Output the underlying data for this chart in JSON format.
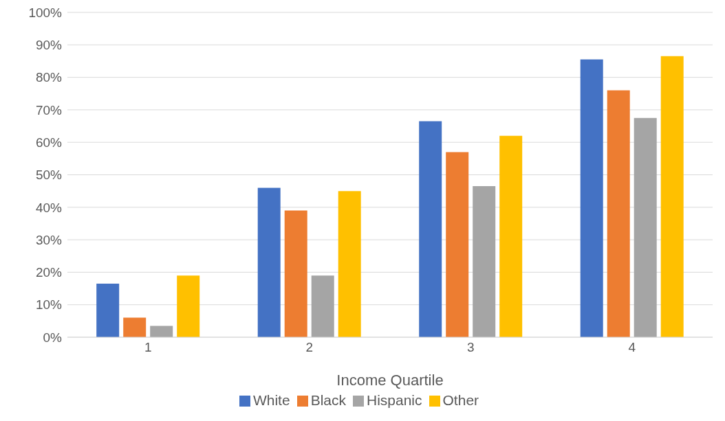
{
  "chart_data": {
    "type": "bar",
    "xlabel": "Income Quartile",
    "categories": [
      "1",
      "2",
      "3",
      "4"
    ],
    "series": [
      {
        "name": "White",
        "color": "#4472c4",
        "values": [
          16.5,
          46,
          66.5,
          85.5
        ]
      },
      {
        "name": "Black",
        "color": "#ed7d31",
        "values": [
          6,
          39,
          57,
          76
        ]
      },
      {
        "name": "Hispanic",
        "color": "#a5a5a5",
        "values": [
          3.5,
          19,
          46.5,
          67.5
        ]
      },
      {
        "name": "Other",
        "color": "#ffc000",
        "values": [
          19,
          45,
          62,
          86.5
        ]
      }
    ],
    "ylim": [
      0,
      100
    ],
    "yticks": [
      {
        "value": 0,
        "label": "0%"
      },
      {
        "value": 10,
        "label": "10%"
      },
      {
        "value": 20,
        "label": "20%"
      },
      {
        "value": 30,
        "label": "30%"
      },
      {
        "value": 40,
        "label": "40%"
      },
      {
        "value": 50,
        "label": "50%"
      },
      {
        "value": 60,
        "label": "60%"
      },
      {
        "value": 70,
        "label": "70%"
      },
      {
        "value": 80,
        "label": "80%"
      },
      {
        "value": 90,
        "label": "90%"
      },
      {
        "value": 100,
        "label": "100%"
      }
    ],
    "grid": "y",
    "legend": "bottom"
  }
}
